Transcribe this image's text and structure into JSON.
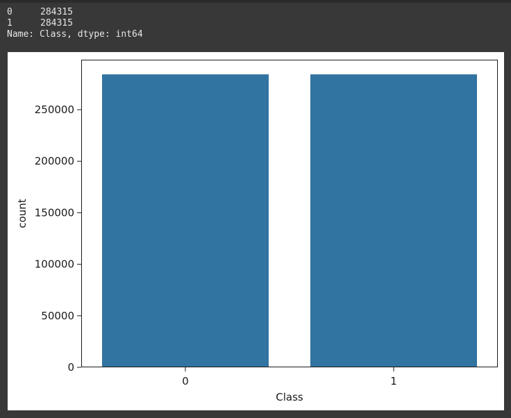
{
  "output": {
    "rows": [
      {
        "index": "0",
        "value": "284315"
      },
      {
        "index": "1",
        "value": "284315"
      }
    ],
    "footer": "Name: Class, dtype: int64"
  },
  "colors": {
    "background": "#383838",
    "text": "#e6e6e6",
    "bar": "#3274a1",
    "plot_background": "#ffffff"
  },
  "chart_data": {
    "type": "bar",
    "categories": [
      "0",
      "1"
    ],
    "values": [
      284315,
      284315
    ],
    "xlabel": "Class",
    "ylabel": "count",
    "ylim": [
      0,
      298530
    ],
    "yticks": [
      0,
      50000,
      100000,
      150000,
      200000,
      250000
    ],
    "grid": false,
    "legend": "none"
  }
}
